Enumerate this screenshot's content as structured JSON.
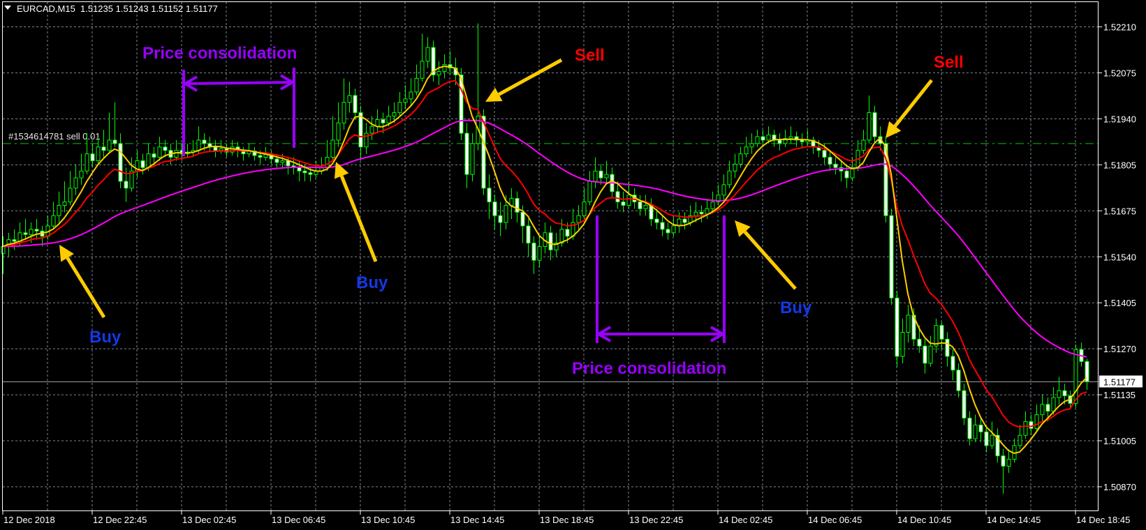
{
  "header": {
    "menu_icon": "triangle-down-icon",
    "symbol": "EURCAD,M15",
    "ohlc": "1.51235 1.51243 1.51152 1.51177"
  },
  "order_line": {
    "label": "#1534614781 sell 0.01",
    "price": 1.5187,
    "color": "#00c800"
  },
  "current_price": {
    "label": "1.51177",
    "value": 1.51177
  },
  "annotations": {
    "consolidation_1": "Price consolidation",
    "consolidation_2": "Price consolidation",
    "sell_1": "Sell",
    "sell_2": "Sell",
    "buy_1": "Buy",
    "buy_2": "Buy",
    "buy_3": "Buy"
  },
  "colors": {
    "background": "#000000",
    "candle": "#00ff00",
    "bear_body": "#ffffff",
    "bull_body": "#000000",
    "grid": "#7b8796",
    "fast_ma": "#ffcc00",
    "mid_ma": "#ff0000",
    "slow_ma": "#ff00ff",
    "consolidation": "#9900ff",
    "sell": "#ff0000",
    "buy": "#1438e6",
    "arrow": "#ffcc00"
  },
  "chart_data": {
    "type": "candlestick",
    "symbol": "EURCAD",
    "timeframe": "M15",
    "y_ticks": [
      "1.52210",
      "1.52075",
      "1.51940",
      "1.51805",
      "1.51675",
      "1.51540",
      "1.51405",
      "1.51270",
      "1.51135",
      "1.51005",
      "1.50870"
    ],
    "x_ticks": [
      "12 Dec 2018",
      "12 Dec 22:45",
      "13 Dec 02:45",
      "13 Dec 06:45",
      "13 Dec 10:45",
      "13 Dec 14:45",
      "13 Dec 18:45",
      "13 Dec 22:45",
      "14 Dec 02:45",
      "14 Dec 06:45",
      "14 Dec 10:45",
      "14 Dec 14:45",
      "14 Dec 18:45"
    ],
    "grid": true,
    "ylim": [
      1.508,
      1.5226
    ],
    "indicators": [
      "fast moving average (yellow)",
      "medium moving average (red)",
      "slow moving average (magenta)"
    ],
    "candles_ohlc": [
      [
        1.5155,
        1.516,
        1.5149,
        1.5157
      ],
      [
        1.5157,
        1.5161,
        1.5154,
        1.5159
      ],
      [
        1.5159,
        1.5162,
        1.5156,
        1.51585
      ],
      [
        1.51585,
        1.5164,
        1.5157,
        1.5161
      ],
      [
        1.5161,
        1.5165,
        1.5159,
        1.51605
      ],
      [
        1.51605,
        1.5164,
        1.5158,
        1.5162
      ],
      [
        1.5162,
        1.5165,
        1.5159,
        1.51615
      ],
      [
        1.51615,
        1.5163,
        1.5157,
        1.516
      ],
      [
        1.516,
        1.5166,
        1.5159,
        1.5163
      ],
      [
        1.5163,
        1.517,
        1.5162,
        1.5166
      ],
      [
        1.5166,
        1.5173,
        1.5164,
        1.5169
      ],
      [
        1.5169,
        1.5176,
        1.5167,
        1.517
      ],
      [
        1.517,
        1.5179,
        1.5169,
        1.5174
      ],
      [
        1.5174,
        1.5181,
        1.5172,
        1.5177
      ],
      [
        1.5177,
        1.5184,
        1.5175,
        1.5179
      ],
      [
        1.5179,
        1.519,
        1.5178,
        1.5184
      ],
      [
        1.5184,
        1.5187,
        1.518,
        1.5182
      ],
      [
        1.5182,
        1.5189,
        1.5181,
        1.5186
      ],
      [
        1.5186,
        1.5191,
        1.5183,
        1.5185
      ],
      [
        1.5185,
        1.5196,
        1.5184,
        1.5188
      ],
      [
        1.5188,
        1.5199,
        1.5186,
        1.5187
      ],
      [
        1.5187,
        1.519,
        1.5174,
        1.5176
      ],
      [
        1.5176,
        1.518,
        1.517,
        1.5174
      ],
      [
        1.5174,
        1.5183,
        1.5173,
        1.5179
      ],
      [
        1.5179,
        1.5185,
        1.5177,
        1.5182
      ],
      [
        1.5182,
        1.5184,
        1.5178,
        1.518
      ],
      [
        1.518,
        1.5187,
        1.5179,
        1.5184
      ],
      [
        1.5184,
        1.5186,
        1.5181,
        1.5183
      ],
      [
        1.5183,
        1.5189,
        1.5182,
        1.5186
      ],
      [
        1.5186,
        1.5188,
        1.5183,
        1.5185
      ],
      [
        1.5185,
        1.5187,
        1.5181,
        1.5183
      ],
      [
        1.5183,
        1.5188,
        1.5182,
        1.5185
      ],
      [
        1.5185,
        1.5187,
        1.5182,
        1.5184
      ],
      [
        1.5184,
        1.5187,
        1.5183,
        1.51845
      ],
      [
        1.51845,
        1.5188,
        1.5183,
        1.5185
      ],
      [
        1.5185,
        1.5192,
        1.5184,
        1.5188
      ],
      [
        1.5188,
        1.519,
        1.5185,
        1.5187
      ],
      [
        1.5187,
        1.5189,
        1.51845,
        1.5186
      ],
      [
        1.5186,
        1.5188,
        1.5183,
        1.5185
      ],
      [
        1.5185,
        1.5188,
        1.5184,
        1.51855
      ],
      [
        1.51855,
        1.5187,
        1.5183,
        1.51845
      ],
      [
        1.51845,
        1.5188,
        1.51835,
        1.5186
      ],
      [
        1.5186,
        1.51875,
        1.5183,
        1.5185
      ],
      [
        1.5185,
        1.5186,
        1.5182,
        1.5184
      ],
      [
        1.5184,
        1.5187,
        1.5183,
        1.51848
      ],
      [
        1.51848,
        1.5186,
        1.5182,
        1.51835
      ],
      [
        1.51835,
        1.5185,
        1.5181,
        1.5183
      ],
      [
        1.5183,
        1.5186,
        1.5182,
        1.51838
      ],
      [
        1.51838,
        1.5185,
        1.5181,
        1.51825
      ],
      [
        1.51825,
        1.5184,
        1.518,
        1.51815
      ],
      [
        1.51815,
        1.5184,
        1.518,
        1.5182
      ],
      [
        1.5182,
        1.5183,
        1.5178,
        1.51805
      ],
      [
        1.51805,
        1.5183,
        1.5178,
        1.518
      ],
      [
        1.518,
        1.5182,
        1.5176,
        1.5179
      ],
      [
        1.5179,
        1.5181,
        1.5176,
        1.51785
      ],
      [
        1.51785,
        1.518,
        1.5176,
        1.5178
      ],
      [
        1.5178,
        1.5182,
        1.5177,
        1.5179
      ],
      [
        1.5179,
        1.5183,
        1.5178,
        1.518
      ],
      [
        1.518,
        1.5188,
        1.5179,
        1.5183
      ],
      [
        1.5183,
        1.5195,
        1.5182,
        1.5188
      ],
      [
        1.5188,
        1.5199,
        1.5186,
        1.5193
      ],
      [
        1.5193,
        1.5206,
        1.5191,
        1.5199
      ],
      [
        1.5199,
        1.5205,
        1.5196,
        1.5201
      ],
      [
        1.5201,
        1.5203,
        1.5194,
        1.5196
      ],
      [
        1.5196,
        1.5198,
        1.5182,
        1.5186
      ],
      [
        1.5186,
        1.5193,
        1.5184,
        1.519
      ],
      [
        1.519,
        1.5195,
        1.5188,
        1.5192
      ],
      [
        1.5192,
        1.5197,
        1.519,
        1.5194
      ],
      [
        1.5194,
        1.5196,
        1.519,
        1.5193
      ],
      [
        1.5193,
        1.5198,
        1.5192,
        1.5195
      ],
      [
        1.5195,
        1.5199,
        1.5193,
        1.5196
      ],
      [
        1.5196,
        1.5202,
        1.5195,
        1.5199
      ],
      [
        1.5199,
        1.5204,
        1.5197,
        1.52
      ],
      [
        1.52,
        1.5206,
        1.5198,
        1.5202
      ],
      [
        1.5202,
        1.521,
        1.5201,
        1.5206
      ],
      [
        1.5206,
        1.5219,
        1.5205,
        1.5211
      ],
      [
        1.5211,
        1.5218,
        1.5209,
        1.5215
      ],
      [
        1.5215,
        1.5217,
        1.5205,
        1.5207
      ],
      [
        1.5207,
        1.5211,
        1.5204,
        1.5208
      ],
      [
        1.5208,
        1.5213,
        1.5206,
        1.521
      ],
      [
        1.521,
        1.5214,
        1.5207,
        1.5209
      ],
      [
        1.5209,
        1.5212,
        1.5204,
        1.5207
      ],
      [
        1.5207,
        1.5209,
        1.5188,
        1.519
      ],
      [
        1.519,
        1.5193,
        1.5174,
        1.5178
      ],
      [
        1.5178,
        1.519,
        1.5176,
        1.5187
      ],
      [
        1.5187,
        1.5222,
        1.5185,
        1.5195
      ],
      [
        1.5195,
        1.5197,
        1.5172,
        1.5174
      ],
      [
        1.5174,
        1.5178,
        1.5165,
        1.517
      ],
      [
        1.517,
        1.5172,
        1.5162,
        1.5166
      ],
      [
        1.5166,
        1.517,
        1.516,
        1.5164
      ],
      [
        1.5164,
        1.5172,
        1.5162,
        1.5169
      ],
      [
        1.5169,
        1.5174,
        1.5165,
        1.5171
      ],
      [
        1.5171,
        1.5173,
        1.5164,
        1.5167
      ],
      [
        1.5167,
        1.5169,
        1.5158,
        1.5163
      ],
      [
        1.5163,
        1.5165,
        1.5154,
        1.5158
      ],
      [
        1.5158,
        1.516,
        1.5149,
        1.5153
      ],
      [
        1.5153,
        1.516,
        1.5151,
        1.5157
      ],
      [
        1.5157,
        1.5164,
        1.5155,
        1.5161
      ],
      [
        1.5161,
        1.5163,
        1.5153,
        1.5156
      ],
      [
        1.5156,
        1.5161,
        1.5154,
        1.5158
      ],
      [
        1.5158,
        1.5165,
        1.5157,
        1.5162
      ],
      [
        1.5162,
        1.5164,
        1.5158,
        1.516
      ],
      [
        1.516,
        1.5168,
        1.5159,
        1.5164
      ],
      [
        1.5164,
        1.5169,
        1.5162,
        1.5166
      ],
      [
        1.5166,
        1.5174,
        1.5165,
        1.517
      ],
      [
        1.517,
        1.5179,
        1.5169,
        1.5176
      ],
      [
        1.5176,
        1.5183,
        1.5174,
        1.5179
      ],
      [
        1.5179,
        1.5181,
        1.5175,
        1.5177
      ],
      [
        1.5177,
        1.5182,
        1.5175,
        1.5178
      ],
      [
        1.5178,
        1.518,
        1.5171,
        1.5173
      ],
      [
        1.5173,
        1.5176,
        1.5168,
        1.517
      ],
      [
        1.517,
        1.5173,
        1.5167,
        1.5169
      ],
      [
        1.5169,
        1.5176,
        1.5168,
        1.5172
      ],
      [
        1.5172,
        1.5174,
        1.5168,
        1.517
      ],
      [
        1.517,
        1.5172,
        1.5166,
        1.5168
      ],
      [
        1.5168,
        1.5172,
        1.5166,
        1.5169
      ],
      [
        1.5169,
        1.5171,
        1.5163,
        1.5165
      ],
      [
        1.5165,
        1.5168,
        1.5162,
        1.5164
      ],
      [
        1.5164,
        1.5166,
        1.516,
        1.5162
      ],
      [
        1.5162,
        1.5164,
        1.5159,
        1.5161
      ],
      [
        1.5161,
        1.5166,
        1.516,
        1.5163
      ],
      [
        1.5163,
        1.5167,
        1.5161,
        1.5165
      ],
      [
        1.5165,
        1.5167,
        1.5162,
        1.5164
      ],
      [
        1.5164,
        1.5169,
        1.5163,
        1.5166
      ],
      [
        1.5166,
        1.517,
        1.5164,
        1.5167
      ],
      [
        1.5167,
        1.5169,
        1.5164,
        1.51665
      ],
      [
        1.51665,
        1.5171,
        1.5165,
        1.5168
      ],
      [
        1.5168,
        1.5173,
        1.5167,
        1.517
      ],
      [
        1.517,
        1.5175,
        1.5169,
        1.5172
      ],
      [
        1.5172,
        1.5178,
        1.517,
        1.5175
      ],
      [
        1.5175,
        1.5182,
        1.5174,
        1.5179
      ],
      [
        1.5179,
        1.5184,
        1.5177,
        1.5181
      ],
      [
        1.5181,
        1.5186,
        1.518,
        1.5184
      ],
      [
        1.5184,
        1.5189,
        1.5183,
        1.5186
      ],
      [
        1.5186,
        1.519,
        1.5184,
        1.5187
      ],
      [
        1.5187,
        1.5191,
        1.5186,
        1.5189
      ],
      [
        1.5189,
        1.5191,
        1.5186,
        1.5188
      ],
      [
        1.5188,
        1.5192,
        1.5187,
        1.51895
      ],
      [
        1.51895,
        1.5191,
        1.5186,
        1.5188
      ],
      [
        1.5188,
        1.519,
        1.5185,
        1.5187
      ],
      [
        1.5187,
        1.5191,
        1.5186,
        1.51885
      ],
      [
        1.51885,
        1.5192,
        1.5187,
        1.5189
      ],
      [
        1.5189,
        1.51905,
        1.5186,
        1.5188
      ],
      [
        1.5188,
        1.519,
        1.5186,
        1.51875
      ],
      [
        1.51875,
        1.5191,
        1.51865,
        1.5188
      ],
      [
        1.5188,
        1.5189,
        1.5184,
        1.5186
      ],
      [
        1.5186,
        1.5188,
        1.5183,
        1.5185
      ],
      [
        1.5185,
        1.5187,
        1.5181,
        1.5183
      ],
      [
        1.5183,
        1.5185,
        1.5179,
        1.5181
      ],
      [
        1.5181,
        1.5183,
        1.5178,
        1.518
      ],
      [
        1.518,
        1.5182,
        1.5176,
        1.5179
      ],
      [
        1.5179,
        1.5181,
        1.5174,
        1.5177
      ],
      [
        1.5177,
        1.5183,
        1.5176,
        1.518
      ],
      [
        1.518,
        1.5188,
        1.5179,
        1.5185
      ],
      [
        1.5185,
        1.5191,
        1.5184,
        1.5188
      ],
      [
        1.5188,
        1.5201,
        1.5187,
        1.5196
      ],
      [
        1.5196,
        1.5198,
        1.5187,
        1.5189
      ],
      [
        1.5189,
        1.5192,
        1.5185,
        1.5187
      ],
      [
        1.5187,
        1.5189,
        1.5164,
        1.5166
      ],
      [
        1.5166,
        1.5168,
        1.514,
        1.5142
      ],
      [
        1.5142,
        1.5144,
        1.5122,
        1.5125
      ],
      [
        1.5125,
        1.5136,
        1.5123,
        1.5132
      ],
      [
        1.5132,
        1.514,
        1.5129,
        1.5137
      ],
      [
        1.5137,
        1.5139,
        1.5128,
        1.513
      ],
      [
        1.513,
        1.5134,
        1.5126,
        1.5128
      ],
      [
        1.5128,
        1.513,
        1.512,
        1.5123
      ],
      [
        1.5123,
        1.5131,
        1.5122,
        1.5128
      ],
      [
        1.5128,
        1.5136,
        1.5126,
        1.5134
      ],
      [
        1.5134,
        1.5135,
        1.5127,
        1.513
      ],
      [
        1.513,
        1.5132,
        1.5122,
        1.5125
      ],
      [
        1.5125,
        1.5127,
        1.5118,
        1.5121
      ],
      [
        1.5121,
        1.5123,
        1.5113,
        1.5115
      ],
      [
        1.5115,
        1.5117,
        1.5105,
        1.5107
      ],
      [
        1.5107,
        1.5109,
        1.5099,
        1.5101
      ],
      [
        1.5101,
        1.5108,
        1.51,
        1.5105
      ],
      [
        1.5105,
        1.5107,
        1.51,
        1.5103
      ],
      [
        1.5103,
        1.5105,
        1.5097,
        1.5099
      ],
      [
        1.5099,
        1.5106,
        1.5098,
        1.5102
      ],
      [
        1.5102,
        1.5104,
        1.5094,
        1.5096
      ],
      [
        1.5096,
        1.5098,
        1.5085,
        1.5093
      ],
      [
        1.5093,
        1.5098,
        1.5091,
        1.5095
      ],
      [
        1.5095,
        1.5101,
        1.5094,
        1.5099
      ],
      [
        1.5099,
        1.5105,
        1.5098,
        1.5102
      ],
      [
        1.5102,
        1.5109,
        1.5101,
        1.5106
      ],
      [
        1.5106,
        1.5108,
        1.5102,
        1.5104
      ],
      [
        1.5104,
        1.5111,
        1.5103,
        1.5108
      ],
      [
        1.5108,
        1.5114,
        1.5106,
        1.5111
      ],
      [
        1.5111,
        1.5113,
        1.5106,
        1.5109
      ],
      [
        1.5109,
        1.5116,
        1.5108,
        1.5113
      ],
      [
        1.5113,
        1.5119,
        1.5111,
        1.5115
      ],
      [
        1.5115,
        1.5117,
        1.5111,
        1.51135
      ],
      [
        1.51135,
        1.5115,
        1.511,
        1.51113
      ],
      [
        1.51113,
        1.51285,
        1.511,
        1.5127
      ],
      [
        1.5127,
        1.5129,
        1.5122,
        1.51235
      ],
      [
        1.51235,
        1.51243,
        1.51152,
        1.51177
      ]
    ]
  }
}
